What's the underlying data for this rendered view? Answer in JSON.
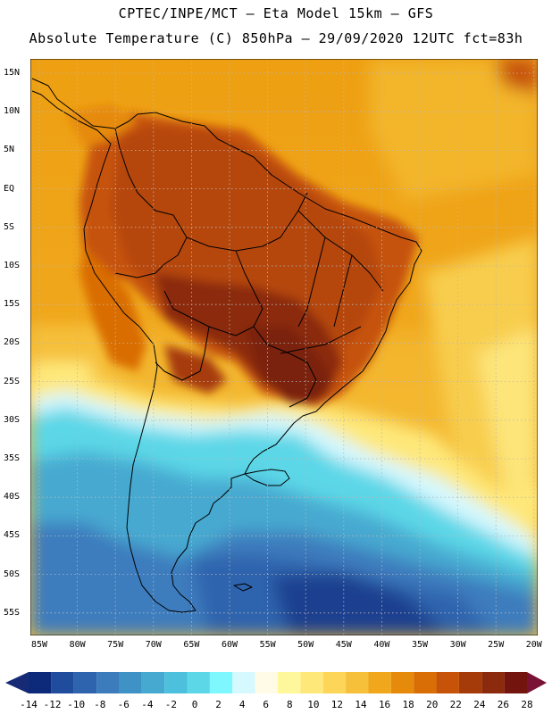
{
  "title_line1": "CPTEC/INPE/MCT –  Eta Model 15km – GFS",
  "title_line2": "Absolute Temperature (C) 850hPa – 29/09/2020 12UTC fct=83h",
  "lat_labels": [
    "15N",
    "10N",
    "5N",
    "EQ",
    "5S",
    "10S",
    "15S",
    "20S",
    "25S",
    "30S",
    "35S",
    "40S",
    "45S",
    "50S",
    "55S"
  ],
  "lon_labels": [
    "85W",
    "80W",
    "75W",
    "70W",
    "65W",
    "60W",
    "55W",
    "50W",
    "45W",
    "40W",
    "35W",
    "30W",
    "25W",
    "20W"
  ],
  "colorbar_labels": [
    "-14",
    "-12",
    "-10",
    "-8",
    "-6",
    "-4",
    "-2",
    "0",
    "2",
    "4",
    "6",
    "8",
    "10",
    "12",
    "14",
    "16",
    "18",
    "20",
    "22",
    "24",
    "26",
    "28"
  ],
  "colorbar_colors": [
    "#0d2a7a",
    "#1f4c9c",
    "#2e64ad",
    "#3c7cbd",
    "#3f92c6",
    "#46a9d0",
    "#4cc0dd",
    "#5cd7e7",
    "#7ff7ff",
    "#d6f8ff",
    "#fffbe6",
    "#fff79c",
    "#fee87a",
    "#fcd559",
    "#f6c03b",
    "#f0a71c",
    "#e68a0b",
    "#d96d06",
    "#c65307",
    "#a63b0a",
    "#8b2a0c",
    "#73150e"
  ],
  "colorbar_under": "#172a75",
  "colorbar_over": "#7a1236",
  "map_colors": {
    "ocean_warm": "#f0a71c",
    "ocean_tropical": "#f6c03b",
    "land_hot": "#b5470d",
    "land_very_hot": "#8b2a0c",
    "land_warm": "#d96d06",
    "south_cool": "#4cc0dd",
    "south_cold": "#2e64ad",
    "south_very_cold": "#1f3f8f"
  }
}
